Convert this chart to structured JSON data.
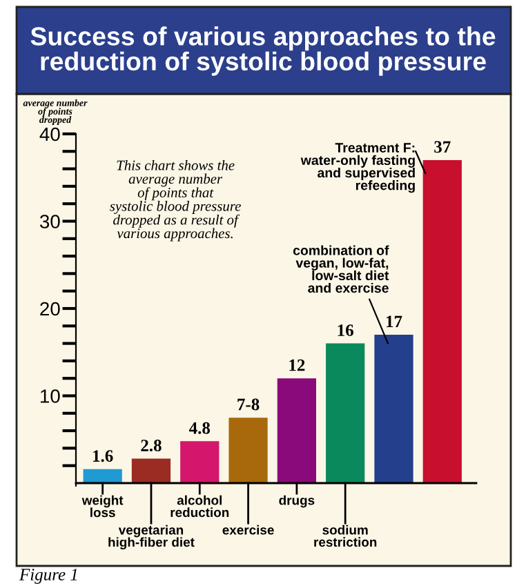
{
  "chart_data": {
    "type": "bar",
    "title": "Success of various approaches to the\nreduction of systolic blood pressure",
    "ylabel": "average number\nof points\ndropped",
    "categories": [
      "weight\nloss",
      "vegetarian\nhigh-fiber diet",
      "alcohol\nreduction",
      "exercise",
      "drugs",
      "sodium\nrestriction",
      null,
      null
    ],
    "values": [
      1.6,
      2.8,
      4.8,
      7.5,
      12,
      16,
      17,
      37
    ],
    "value_labels": [
      "1.6",
      "2.8",
      "4.8",
      "7-8",
      "12",
      "16",
      "17",
      "37"
    ],
    "colors": [
      "#1f9ad2",
      "#9a2c24",
      "#d4166c",
      "#a8690c",
      "#8a0a7c",
      "#0a8a5c",
      "#24408c",
      "#c8102e"
    ],
    "ylim": [
      0,
      40
    ],
    "yticks": [
      {
        "value": 2,
        "label": null
      },
      {
        "value": 4,
        "label": null
      },
      {
        "value": 6,
        "label": null
      },
      {
        "value": 8,
        "label": null
      },
      10,
      {
        "value": 12,
        "label": null
      },
      {
        "value": 14,
        "label": null
      },
      {
        "value": 16,
        "label": null
      },
      {
        "value": 18,
        "label": null
      },
      20,
      {
        "value": 22,
        "label": null
      },
      {
        "value": 24,
        "label": null
      },
      {
        "value": 26,
        "label": null
      },
      {
        "value": 28,
        "label": null
      },
      30,
      {
        "value": 32,
        "label": null
      },
      {
        "value": 34,
        "label": null
      },
      {
        "value": 36,
        "label": null
      },
      {
        "value": 38,
        "label": null
      },
      40
    ],
    "grid": false,
    "annotations": [
      "combination of\nvegan, low-fat,\nlow-salt diet\nand exercise",
      "Treatment F:\nwater-only fasting\nand supervised\nrefeeding",
      "This chart shows the\naverage number\nof points that\nsystolic blood pressure\ndropped as a result of\nvarious approaches.",
      "Figure 1"
    ]
  }
}
